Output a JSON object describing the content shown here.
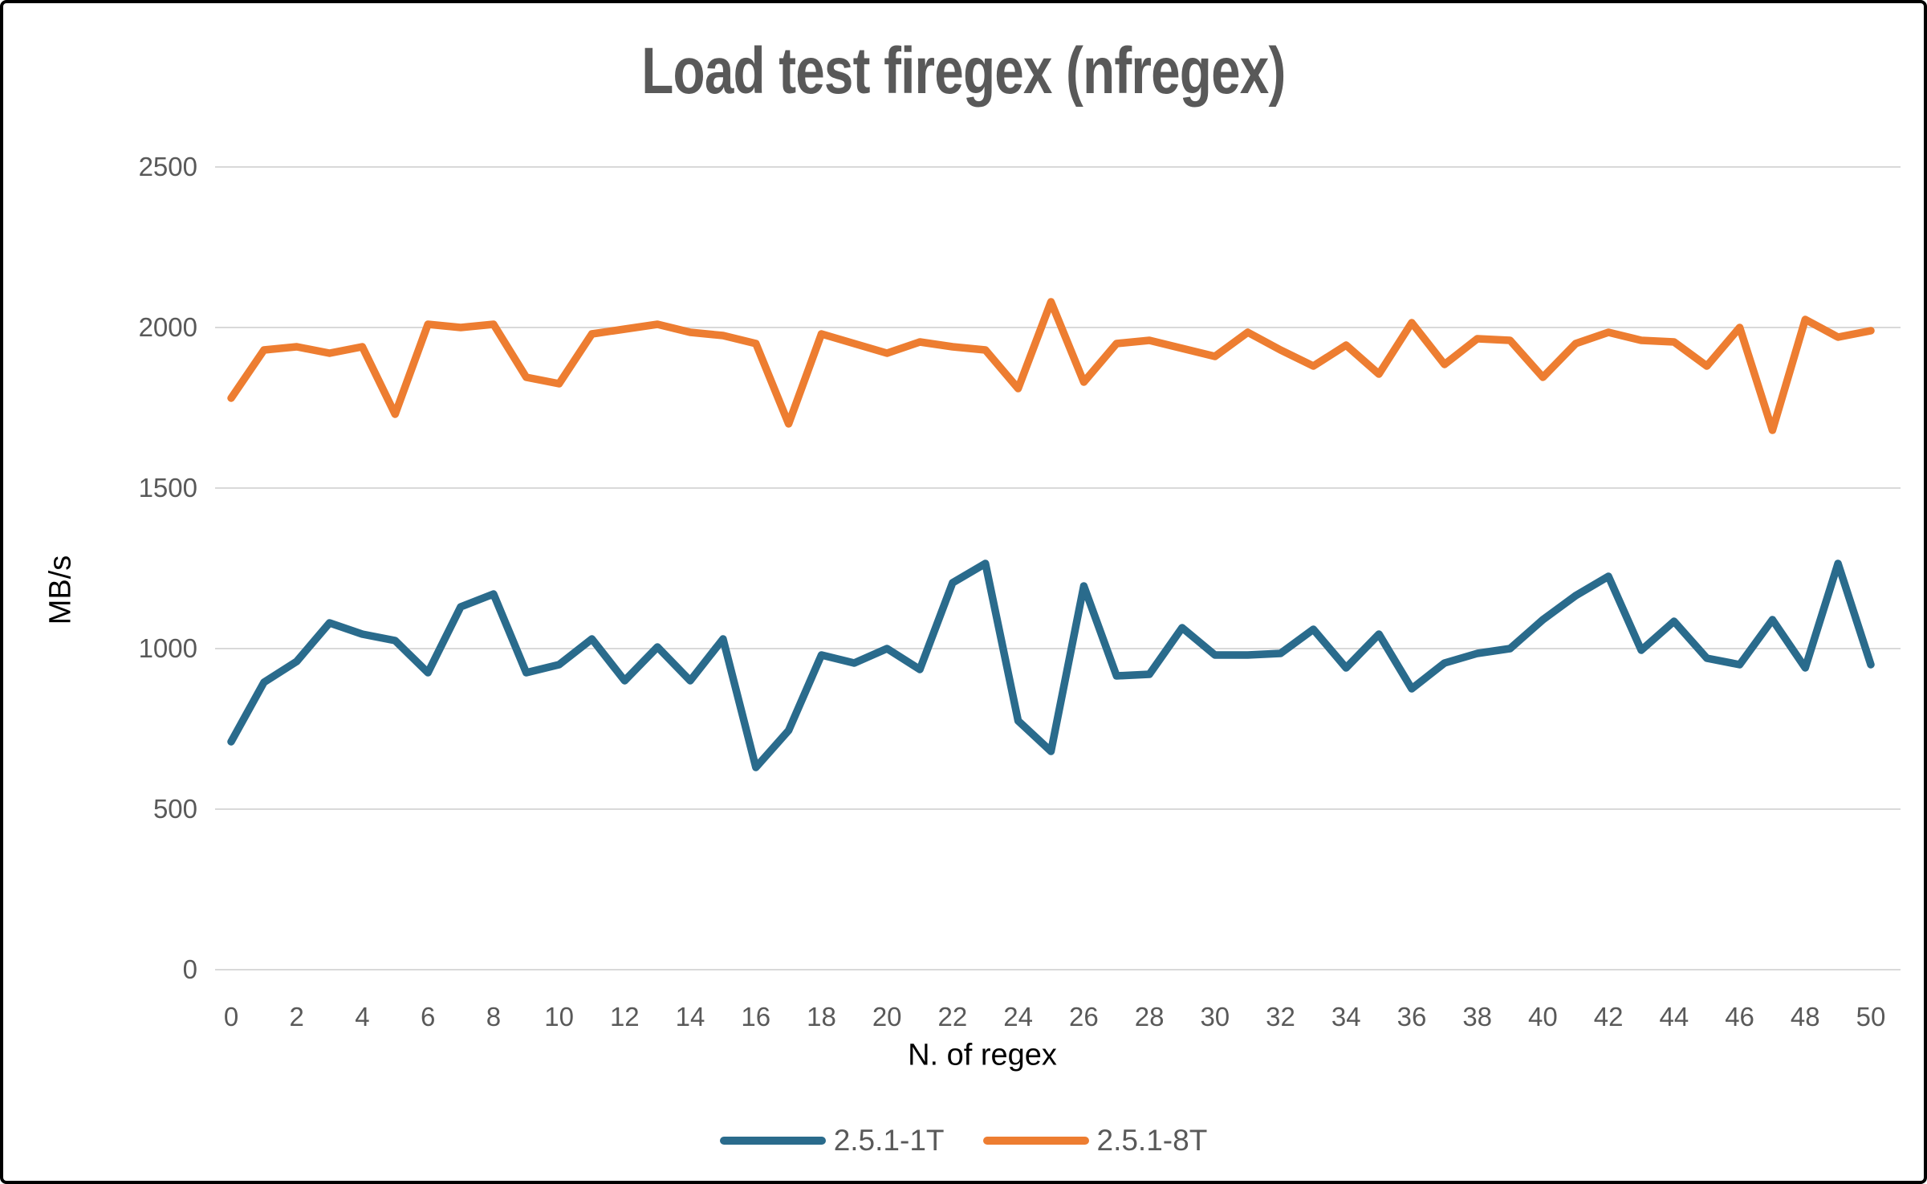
{
  "chart_data": {
    "type": "line",
    "title": "Load test firegex (nfregex)",
    "xlabel": "N. of regex",
    "ylabel": "MB/s",
    "x": [
      0,
      1,
      2,
      3,
      4,
      5,
      6,
      7,
      8,
      9,
      10,
      11,
      12,
      13,
      14,
      15,
      16,
      17,
      18,
      19,
      20,
      21,
      22,
      23,
      24,
      25,
      26,
      27,
      28,
      29,
      30,
      31,
      32,
      33,
      34,
      35,
      36,
      37,
      38,
      39,
      40,
      41,
      42,
      43,
      44,
      45,
      46,
      47,
      48,
      49,
      50
    ],
    "xtick_step": 2,
    "ylim": [
      0,
      2500
    ],
    "ytick_step": 500,
    "grid": true,
    "legend_position": "bottom",
    "series": [
      {
        "name": "2.5.1-1T",
        "color": "#2A6B8C",
        "values": [
          710,
          895,
          960,
          1080,
          1045,
          1025,
          925,
          1130,
          1170,
          925,
          950,
          1030,
          900,
          1005,
          900,
          1030,
          630,
          745,
          980,
          955,
          1000,
          935,
          1205,
          1265,
          775,
          680,
          1195,
          915,
          920,
          1065,
          980,
          980,
          985,
          1060,
          940,
          1045,
          875,
          955,
          985,
          1000,
          1090,
          1165,
          1225,
          995,
          1085,
          970,
          950,
          1090,
          940,
          1265,
          950
        ]
      },
      {
        "name": "2.5.1-8T",
        "color": "#ED7D31",
        "values": [
          1780,
          1930,
          1940,
          1920,
          1940,
          1730,
          2010,
          2000,
          2010,
          1845,
          1825,
          1980,
          1995,
          2010,
          1985,
          1975,
          1950,
          1700,
          1980,
          1950,
          1920,
          1955,
          1940,
          1930,
          1810,
          2080,
          1830,
          1950,
          1960,
          1935,
          1910,
          1985,
          1930,
          1880,
          1945,
          1855,
          2015,
          1885,
          1965,
          1960,
          1845,
          1950,
          1985,
          1960,
          1955,
          1880,
          2000,
          1680,
          2025,
          1970,
          1990
        ]
      }
    ],
    "gridline_color": "#D9D9D9",
    "text_color": "#595959",
    "axis_title_color": "#000000"
  }
}
